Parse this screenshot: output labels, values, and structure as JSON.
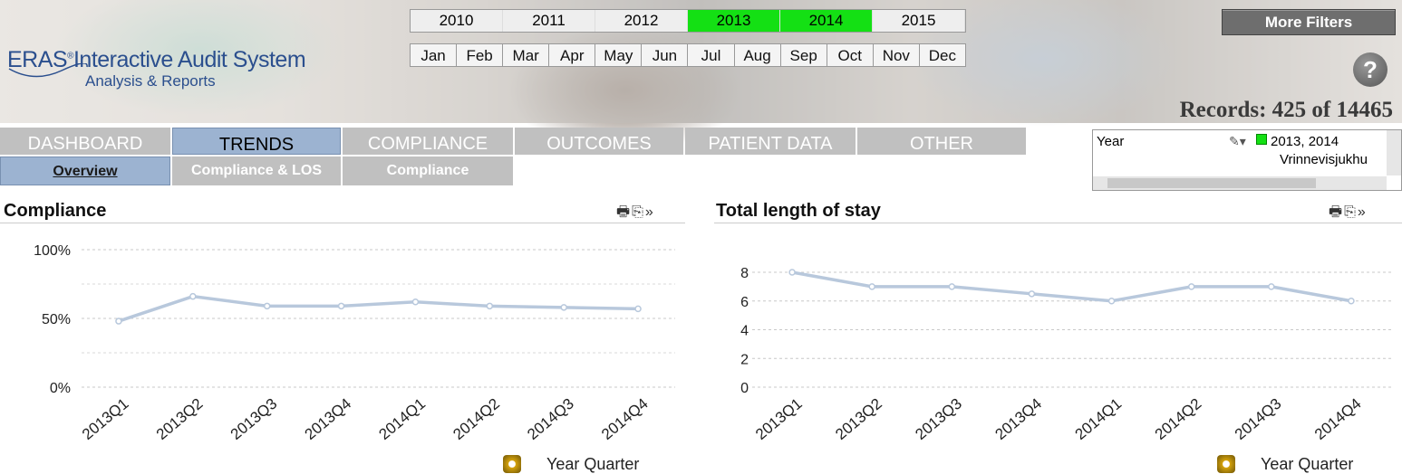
{
  "header": {
    "logo_brand": "ERAS",
    "logo_reg": "®",
    "logo_title": "Interactive Audit System",
    "logo_subtitle": "Analysis & Reports",
    "years": [
      {
        "label": "2010",
        "selected": false
      },
      {
        "label": "2011",
        "selected": false
      },
      {
        "label": "2012",
        "selected": false
      },
      {
        "label": "2013",
        "selected": true
      },
      {
        "label": "2014",
        "selected": true
      },
      {
        "label": "2015",
        "selected": false
      }
    ],
    "months": [
      "Jan",
      "Feb",
      "Mar",
      "Apr",
      "May",
      "Jun",
      "Jul",
      "Aug",
      "Sep",
      "Oct",
      "Nov",
      "Dec"
    ],
    "more_filters": "More Filters",
    "help": "?",
    "records": "Records: 425 of 14465"
  },
  "tabs": [
    "DASHBOARD",
    "TRENDS",
    "COMPLIANCE",
    "OUTCOMES",
    "PATIENT DATA",
    "OTHER"
  ],
  "active_tab": "TRENDS",
  "subtabs": [
    "Overview",
    "Compliance & LOS",
    "Compliance"
  ],
  "active_subtab": "Overview",
  "listbox": {
    "field": "Year",
    "value1": "2013, 2014",
    "value2": "Vrinnevisjukhu"
  },
  "colors": {
    "selected": "#14e014",
    "active_tab": "#9cb3d1",
    "line": "#b8c8dc"
  },
  "chart_data": [
    {
      "type": "line",
      "title": "Compliance",
      "categories": [
        "2013Q1",
        "2013Q2",
        "2013Q3",
        "2013Q4",
        "2014Q1",
        "2014Q2",
        "2014Q3",
        "2014Q4"
      ],
      "values": [
        48,
        66,
        59,
        59,
        62,
        59,
        58,
        57
      ],
      "yticks": [
        "0%",
        "50%",
        "100%"
      ],
      "ytick_values": [
        0,
        50,
        100
      ],
      "ylim": [
        0,
        100
      ],
      "grid": true,
      "legend": "Year Quarter"
    },
    {
      "type": "line",
      "title": "Total length of stay",
      "categories": [
        "2013Q1",
        "2013Q2",
        "2013Q3",
        "2013Q4",
        "2014Q1",
        "2014Q2",
        "2014Q3",
        "2014Q4"
      ],
      "values": [
        8,
        7,
        7,
        6.5,
        6,
        7,
        7,
        6
      ],
      "yticks": [
        "0",
        "2",
        "4",
        "6",
        "8"
      ],
      "ytick_values": [
        0,
        2,
        4,
        6,
        8
      ],
      "ylim": [
        0,
        8
      ],
      "grid": true,
      "legend": "Year Quarter"
    }
  ]
}
